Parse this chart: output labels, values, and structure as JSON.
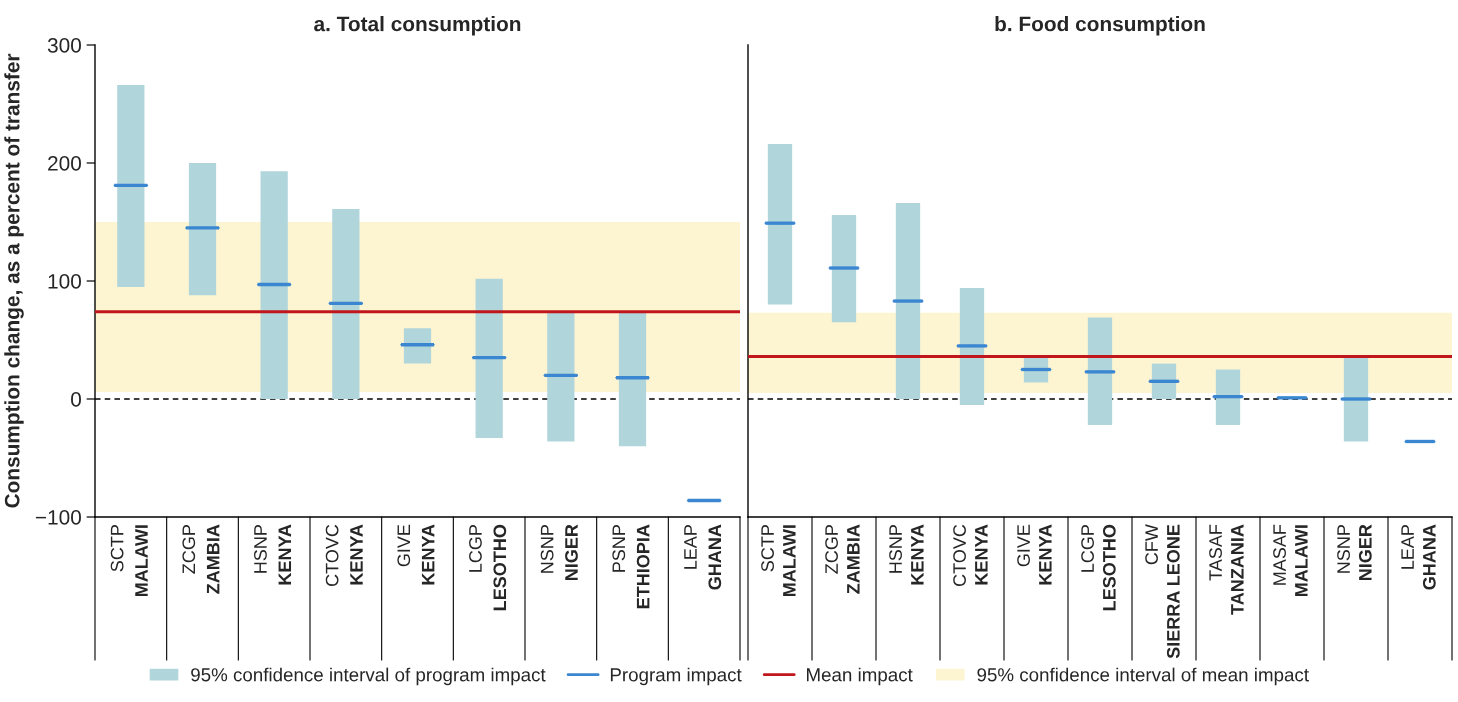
{
  "chart_data": [
    {
      "type": "bar",
      "title": "a. Total consumption",
      "ylabel": "Consumption change, as a percent of transfer",
      "categories": [
        "SCTP\nMALAWI",
        "ZCGP\nZAMBIA",
        "HSNP\nKENYA",
        "CTOVC\nKENYA",
        "GIVE\nKENYA",
        "LCGP\nLESOTHO",
        "NSNP\nNIGER",
        "PSNP\nETHIOPIA",
        "LEAP\nGHANA"
      ],
      "series": [
        {
          "name": "95% confidence interval of program impact",
          "color": "#b0d5da",
          "base": [
            95,
            88,
            0,
            0,
            30,
            -33,
            -36,
            -40,
            null
          ],
          "values": [
            171,
            112,
            193,
            161,
            30,
            135,
            110,
            114,
            null
          ]
        },
        {
          "name": "Program impact",
          "type": "box",
          "color": "#3a86d0",
          "boxes": [
            {
              "low": 181,
              "q1": 181,
              "median": 181,
              "q3": 181,
              "high": 181
            },
            {
              "low": 145,
              "q1": 145,
              "median": 145,
              "q3": 145,
              "high": 145
            },
            {
              "low": 97,
              "q1": 97,
              "median": 97,
              "q3": 97,
              "high": 97
            },
            {
              "low": 81,
              "q1": 81,
              "median": 81,
              "q3": 81,
              "high": 81
            },
            {
              "low": 46,
              "q1": 46,
              "median": 46,
              "q3": 46,
              "high": 46
            },
            {
              "low": 35,
              "q1": 35,
              "median": 35,
              "q3": 35,
              "high": 35
            },
            {
              "low": 20,
              "q1": 20,
              "median": 20,
              "q3": 20,
              "high": 20
            },
            {
              "low": 18,
              "q1": 18,
              "median": 18,
              "q3": 18,
              "high": 18
            },
            {
              "low": -86,
              "q1": -86,
              "median": -86,
              "q3": -86,
              "high": -86
            }
          ]
        }
      ],
      "ref_lines": [
        {
          "axis": "y",
          "value": 74,
          "label": "Mean impact",
          "color": "#c0161c",
          "line_style": "solid"
        },
        {
          "axis": "y",
          "value": 0,
          "color": "#000000",
          "line_style": "dashed"
        }
      ],
      "bands": [
        {
          "axis": "y",
          "from": 6,
          "to": 150,
          "label": "95% confidence interval of mean impact",
          "color": "#fdf5d2"
        }
      ],
      "ylim": [
        -100,
        300
      ],
      "yticks": [
        {
          "value": -100,
          "label": "−100"
        },
        0,
        100,
        200,
        300
      ],
      "grid": false,
      "legend": "bottom"
    },
    {
      "type": "bar",
      "title": "b. Food consumption",
      "categories": [
        "SCTP\nMALAWI",
        "ZCGP\nZAMBIA",
        "HSNP\nKENYA",
        "CTOVC\nKENYA",
        "GIVE\nKENYA",
        "LCGP\nLESOTHO",
        "CFW\nSIERRA LEONE",
        "TASAF\nTANZANIA",
        "MASAF\nMALAWI",
        "NSNP\nNIGER",
        "LEAP\nGHANA"
      ],
      "series": [
        {
          "color": "#b0d5da",
          "base": [
            80,
            65,
            0,
            -5,
            14,
            -22,
            0,
            -22,
            null,
            -36,
            null
          ],
          "values": [
            136,
            91,
            166,
            99,
            22,
            91,
            30,
            47,
            null,
            72,
            null
          ]
        },
        {
          "type": "box",
          "color": "#3a86d0",
          "boxes": [
            {
              "low": 149,
              "q1": 149,
              "median": 149,
              "q3": 149,
              "high": 149
            },
            {
              "low": 111,
              "q1": 111,
              "median": 111,
              "q3": 111,
              "high": 111
            },
            {
              "low": 83,
              "q1": 83,
              "median": 83,
              "q3": 83,
              "high": 83
            },
            {
              "low": 45,
              "q1": 45,
              "median": 45,
              "q3": 45,
              "high": 45
            },
            {
              "low": 25,
              "q1": 25,
              "median": 25,
              "q3": 25,
              "high": 25
            },
            {
              "low": 23,
              "q1": 23,
              "median": 23,
              "q3": 23,
              "high": 23
            },
            {
              "low": 15,
              "q1": 15,
              "median": 15,
              "q3": 15,
              "high": 15
            },
            {
              "low": 2,
              "q1": 2,
              "median": 2,
              "q3": 2,
              "high": 2
            },
            {
              "low": 1,
              "q1": 1,
              "median": 1,
              "q3": 1,
              "high": 1
            },
            {
              "low": 0,
              "q1": 0,
              "median": 0,
              "q3": 0,
              "high": 0
            },
            {
              "low": -36,
              "q1": -36,
              "median": -36,
              "q3": -36,
              "high": -36
            }
          ]
        }
      ],
      "ref_lines": [
        {
          "axis": "y",
          "value": 36,
          "color": "#c0161c",
          "line_style": "solid"
        },
        {
          "axis": "y",
          "value": 0,
          "color": "#000000",
          "line_style": "dashed"
        }
      ],
      "bands": [
        {
          "axis": "y",
          "from": 5,
          "to": 73,
          "color": "#fdf5d2"
        }
      ],
      "ylim": [
        -100,
        300
      ],
      "grid": false,
      "tick_labels": "x"
    }
  ]
}
